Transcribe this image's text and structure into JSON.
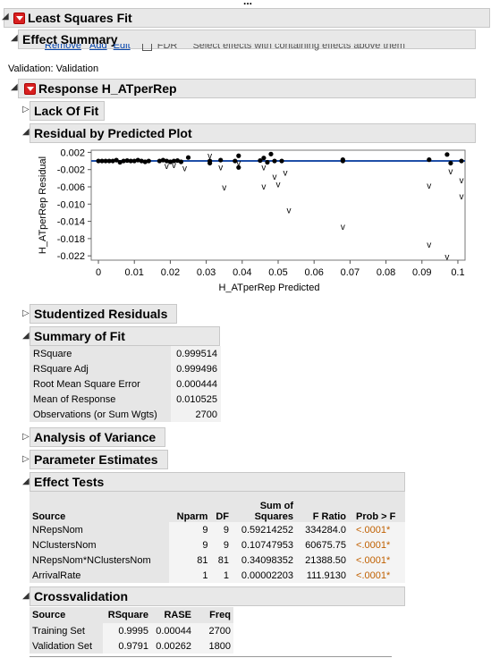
{
  "report": {
    "title": "Least Squares Fit",
    "effect_summary": "Effect Summary",
    "hidden_links": [
      "Remove",
      "Add",
      "Edit"
    ],
    "fdr_label": "FDR",
    "hidden_note": "Select effects with containing effects above them",
    "validation": "Validation: Validation",
    "response": "Response H_ATperRep",
    "lack_of_fit": "Lack Of Fit",
    "residual_plot": "Residual by Predicted Plot",
    "studentized": "Studentized Residuals",
    "summary_of_fit": "Summary of Fit",
    "anova": "Analysis of Variance",
    "param_est": "Parameter Estimates",
    "effect_tests": "Effect Tests",
    "crossval": "Crossvalidation"
  },
  "summary_fit": [
    {
      "label": "RSquare",
      "value": "0.999514"
    },
    {
      "label": "RSquare Adj",
      "value": "0.999496"
    },
    {
      "label": "Root Mean Square Error",
      "value": "0.000444"
    },
    {
      "label": "Mean of Response",
      "value": "0.010525"
    },
    {
      "label": "Observations (or Sum Wgts)",
      "value": "2700"
    }
  ],
  "effect_tests": {
    "headers": [
      "Source",
      "Nparm",
      "DF",
      "Sum of Squares",
      "F Ratio",
      "Prob > F"
    ],
    "rows": [
      [
        "NRepsNom",
        "9",
        "9",
        "0.59214252",
        "334284.0",
        "<.0001*"
      ],
      [
        "NClustersNom",
        "9",
        "9",
        "0.10747953",
        "60675.75",
        "<.0001*"
      ],
      [
        "NRepsNom*NClustersNom",
        "81",
        "81",
        "0.34098352",
        "21388.50",
        "<.0001*"
      ],
      [
        "ArrivalRate",
        "1",
        "1",
        "0.00002203",
        "111.9130",
        "<.0001*"
      ]
    ]
  },
  "crossval": {
    "headers": [
      "Source",
      "RSquare",
      "RASE",
      "Freq"
    ],
    "rows": [
      [
        "Training Set",
        "0.9995",
        "0.00044",
        "2700"
      ],
      [
        "Validation Set",
        "0.9791",
        "0.00262",
        "1800"
      ]
    ]
  },
  "chart_data": {
    "type": "scatter",
    "xlabel": "H_ATperRep Predicted",
    "ylabel": "H_ATperRep Residual",
    "xlim": [
      -0.002,
      0.102
    ],
    "ylim": [
      -0.023,
      0.0025
    ],
    "xticks": [
      "0",
      "0.01",
      "0.02",
      "0.03",
      "0.04",
      "0.05",
      "0.06",
      "0.07",
      "0.08",
      "0.09",
      "0.1"
    ],
    "xtick_values": [
      0,
      0.01,
      0.02,
      0.03,
      0.04,
      0.05,
      0.06,
      0.07,
      0.08,
      0.09,
      0.1
    ],
    "yticks": [
      "0.002",
      "-0.002",
      "-0.006",
      "-0.010",
      "-0.014",
      "-0.018",
      "-0.022"
    ],
    "ytick_values": [
      0.002,
      -0.002,
      -0.006,
      -0.01,
      -0.014,
      -0.018,
      -0.022
    ],
    "reference_line": 0,
    "line_color": "#1f4fa8",
    "training_points": [
      [
        0.0,
        0
      ],
      [
        0.001,
        0
      ],
      [
        0.002,
        0
      ],
      [
        0.003,
        0
      ],
      [
        0.004,
        0
      ],
      [
        0.005,
        0.0002
      ],
      [
        0.006,
        -0.0003
      ],
      [
        0.007,
        0
      ],
      [
        0.008,
        0.0001
      ],
      [
        0.009,
        0
      ],
      [
        0.01,
        0
      ],
      [
        0.011,
        0.0002
      ],
      [
        0.012,
        0
      ],
      [
        0.013,
        -0.0002
      ],
      [
        0.014,
        0
      ],
      [
        0.017,
        0
      ],
      [
        0.018,
        0.0002
      ],
      [
        0.019,
        0
      ],
      [
        0.02,
        -0.0002
      ],
      [
        0.021,
        0
      ],
      [
        0.022,
        0.0001
      ],
      [
        0.023,
        -0.0002
      ],
      [
        0.025,
        0.0008
      ],
      [
        0.031,
        0
      ],
      [
        0.031,
        -0.0005
      ],
      [
        0.034,
        0.0002
      ],
      [
        0.038,
        0
      ],
      [
        0.039,
        0.0012
      ],
      [
        0.039,
        -0.0015
      ],
      [
        0.045,
        0.0001
      ],
      [
        0.046,
        0.0007
      ],
      [
        0.047,
        -0.0003
      ],
      [
        0.048,
        0.0016
      ],
      [
        0.049,
        0
      ],
      [
        0.051,
        0
      ],
      [
        0.068,
        0
      ],
      [
        0.068,
        0.0003
      ],
      [
        0.092,
        0.0003
      ],
      [
        0.097,
        0.0015
      ],
      [
        0.098,
        -0.0005
      ],
      [
        0.101,
        0
      ]
    ],
    "validation_points": [
      [
        0.019,
        -0.0012
      ],
      [
        0.021,
        -0.001
      ],
      [
        0.024,
        -0.0017
      ],
      [
        0.031,
        0.0012
      ],
      [
        0.034,
        -0.0015
      ],
      [
        0.035,
        -0.0062
      ],
      [
        0.039,
        -0.0005
      ],
      [
        0.046,
        -0.0015
      ],
      [
        0.046,
        -0.006
      ],
      [
        0.049,
        -0.0037
      ],
      [
        0.05,
        -0.0055
      ],
      [
        0.052,
        -0.0028
      ],
      [
        0.053,
        -0.0115
      ],
      [
        0.068,
        -0.0153
      ],
      [
        0.092,
        -0.0058
      ],
      [
        0.092,
        -0.0195
      ],
      [
        0.097,
        -0.0223
      ],
      [
        0.098,
        -0.0025
      ],
      [
        0.101,
        -0.0045
      ],
      [
        0.101,
        -0.0083
      ]
    ]
  }
}
